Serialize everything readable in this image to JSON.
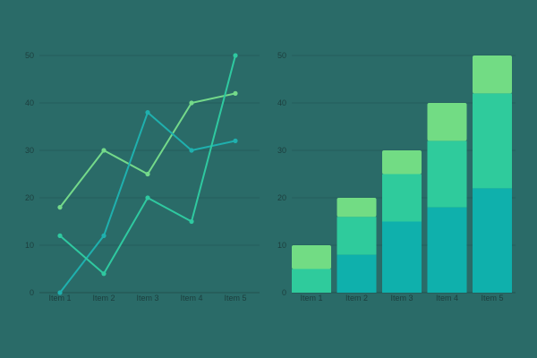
{
  "chart_data": [
    {
      "type": "line",
      "categories": [
        "Item 1",
        "Item 2",
        "Item 3",
        "Item 4",
        "Item 5"
      ],
      "ylim": [
        0,
        50
      ],
      "yticks": [
        0,
        10,
        20,
        30,
        40,
        50
      ],
      "grid": true,
      "series": [
        {
          "values": [
            18,
            30,
            25,
            40,
            42
          ],
          "color": "#74d98a"
        },
        {
          "values": [
            0,
            12,
            38,
            30,
            32
          ],
          "color": "#1fb0ae"
        },
        {
          "values": [
            12,
            4,
            20,
            15,
            50
          ],
          "color": "#2fc9a0"
        }
      ]
    },
    {
      "type": "bar",
      "stacked": true,
      "categories": [
        "Item 1",
        "Item 2",
        "Item 3",
        "Item 4",
        "Item 5"
      ],
      "ylim": [
        0,
        50
      ],
      "yticks": [
        0,
        10,
        20,
        30,
        40,
        50
      ],
      "grid": true,
      "series": [
        {
          "values": [
            0,
            8,
            15,
            18,
            22
          ],
          "color": "#0fb0ac"
        },
        {
          "values": [
            5,
            8,
            10,
            14,
            20
          ],
          "color": "#2fcb9c"
        },
        {
          "values": [
            5,
            4,
            5,
            8,
            8
          ],
          "color": "#72dc84"
        }
      ]
    }
  ]
}
